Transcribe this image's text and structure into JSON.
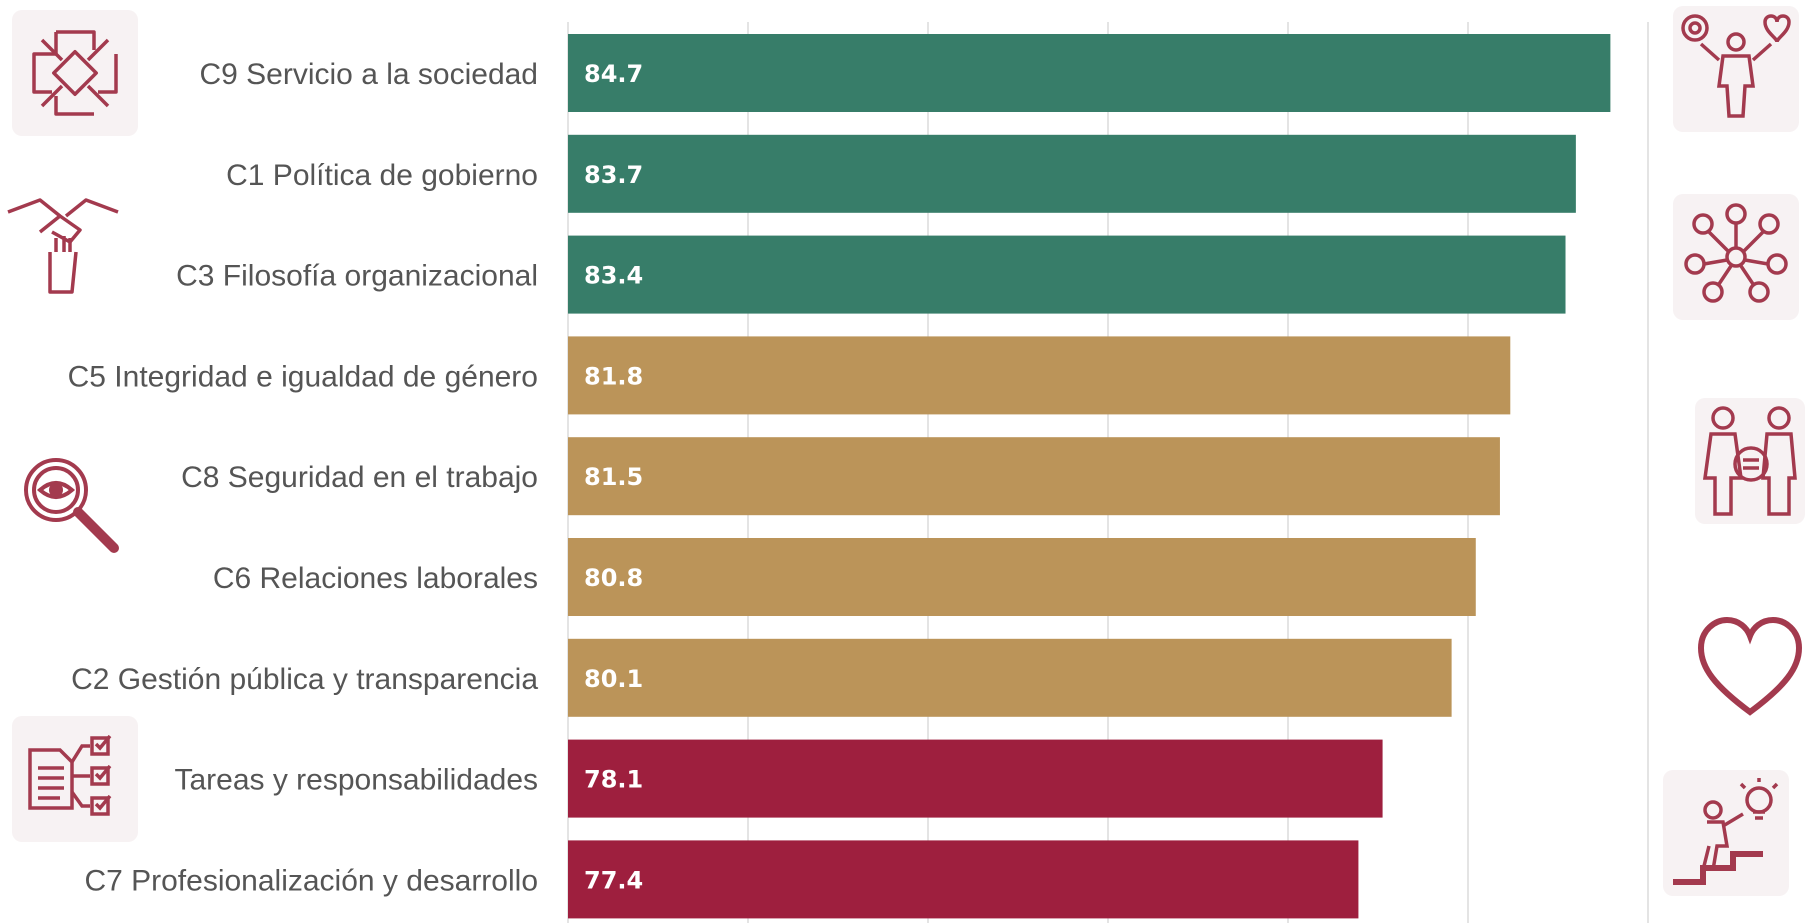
{
  "chart_data": {
    "type": "bar",
    "orientation": "horizontal",
    "categories": [
      "C9  Servicio a la sociedad",
      "C1  Política de gobierno",
      "C3  Filosofía organizacional",
      "C5  Integridad e igualdad de género",
      "C8  Seguridad en el trabajo",
      "C6  Relaciones laborales",
      "C2  Gestión pública y transparencia",
      "Tareas y responsabilidades",
      "C7 Profesionalización y desarrollo"
    ],
    "values": [
      84.7,
      83.7,
      83.4,
      81.8,
      81.5,
      80.8,
      80.1,
      78.1,
      77.4
    ],
    "bar_colors": [
      "#377d69",
      "#377d69",
      "#377d69",
      "#bb9459",
      "#bb9459",
      "#bb9459",
      "#bb9459",
      "#9e1f3e",
      "#9e1f3e"
    ],
    "xlim": [
      54.5,
      85.5
    ],
    "grid": "vertical",
    "title": "",
    "xlabel": "",
    "ylabel": ""
  },
  "icons": {
    "left": [
      "hands-together-icon",
      "handshake-icon",
      "magnifier-eye-icon",
      "checklist-icon"
    ],
    "right": [
      "person-gear-heart-icon",
      "people-network-icon",
      "gender-equality-icon",
      "heart-icon",
      "person-stairs-lightbulb-icon"
    ],
    "color": "#a33a4e"
  }
}
